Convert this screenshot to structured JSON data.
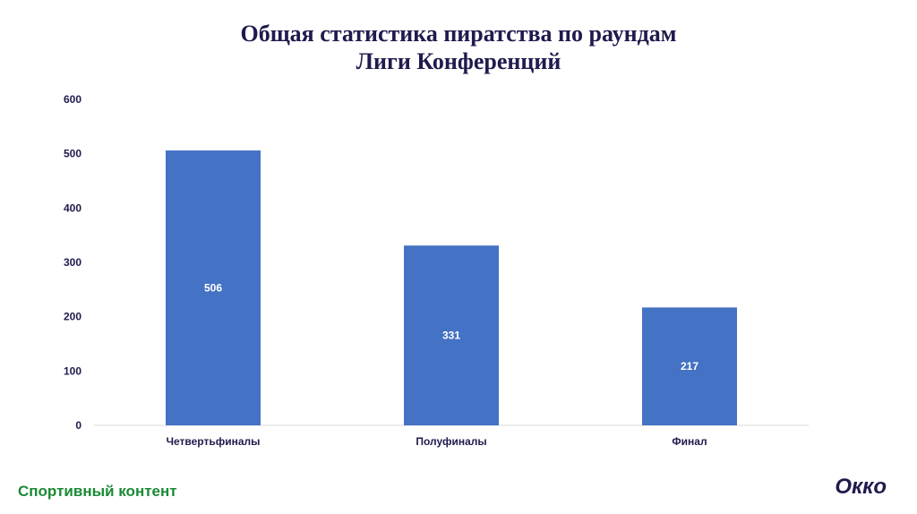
{
  "title": [
    "Общая статистика пиратства по раундам",
    "Лиги Конференций"
  ],
  "footer": {
    "left_text": "Спортивный контент",
    "brand": "Окко"
  },
  "colors": {
    "bar": "#4472c4",
    "axis_text": "#1f1b4d",
    "data_label": "#ffffff",
    "baseline": "#d9d9d9",
    "footer_green": "#1a8a35"
  },
  "chart_data": {
    "type": "bar",
    "title": "Общая статистика пиратства по раундам Лиги Конференций",
    "categories": [
      "Четвертьфиналы",
      "Полуфиналы",
      "Финал"
    ],
    "values": [
      506,
      331,
      217
    ],
    "data_labels": [
      "506",
      "331",
      "217"
    ],
    "ylim": [
      0,
      600
    ],
    "yticks": [
      0,
      100,
      200,
      300,
      400,
      500,
      600
    ],
    "grid": false,
    "legend": "none",
    "xlabel": "",
    "ylabel": ""
  }
}
